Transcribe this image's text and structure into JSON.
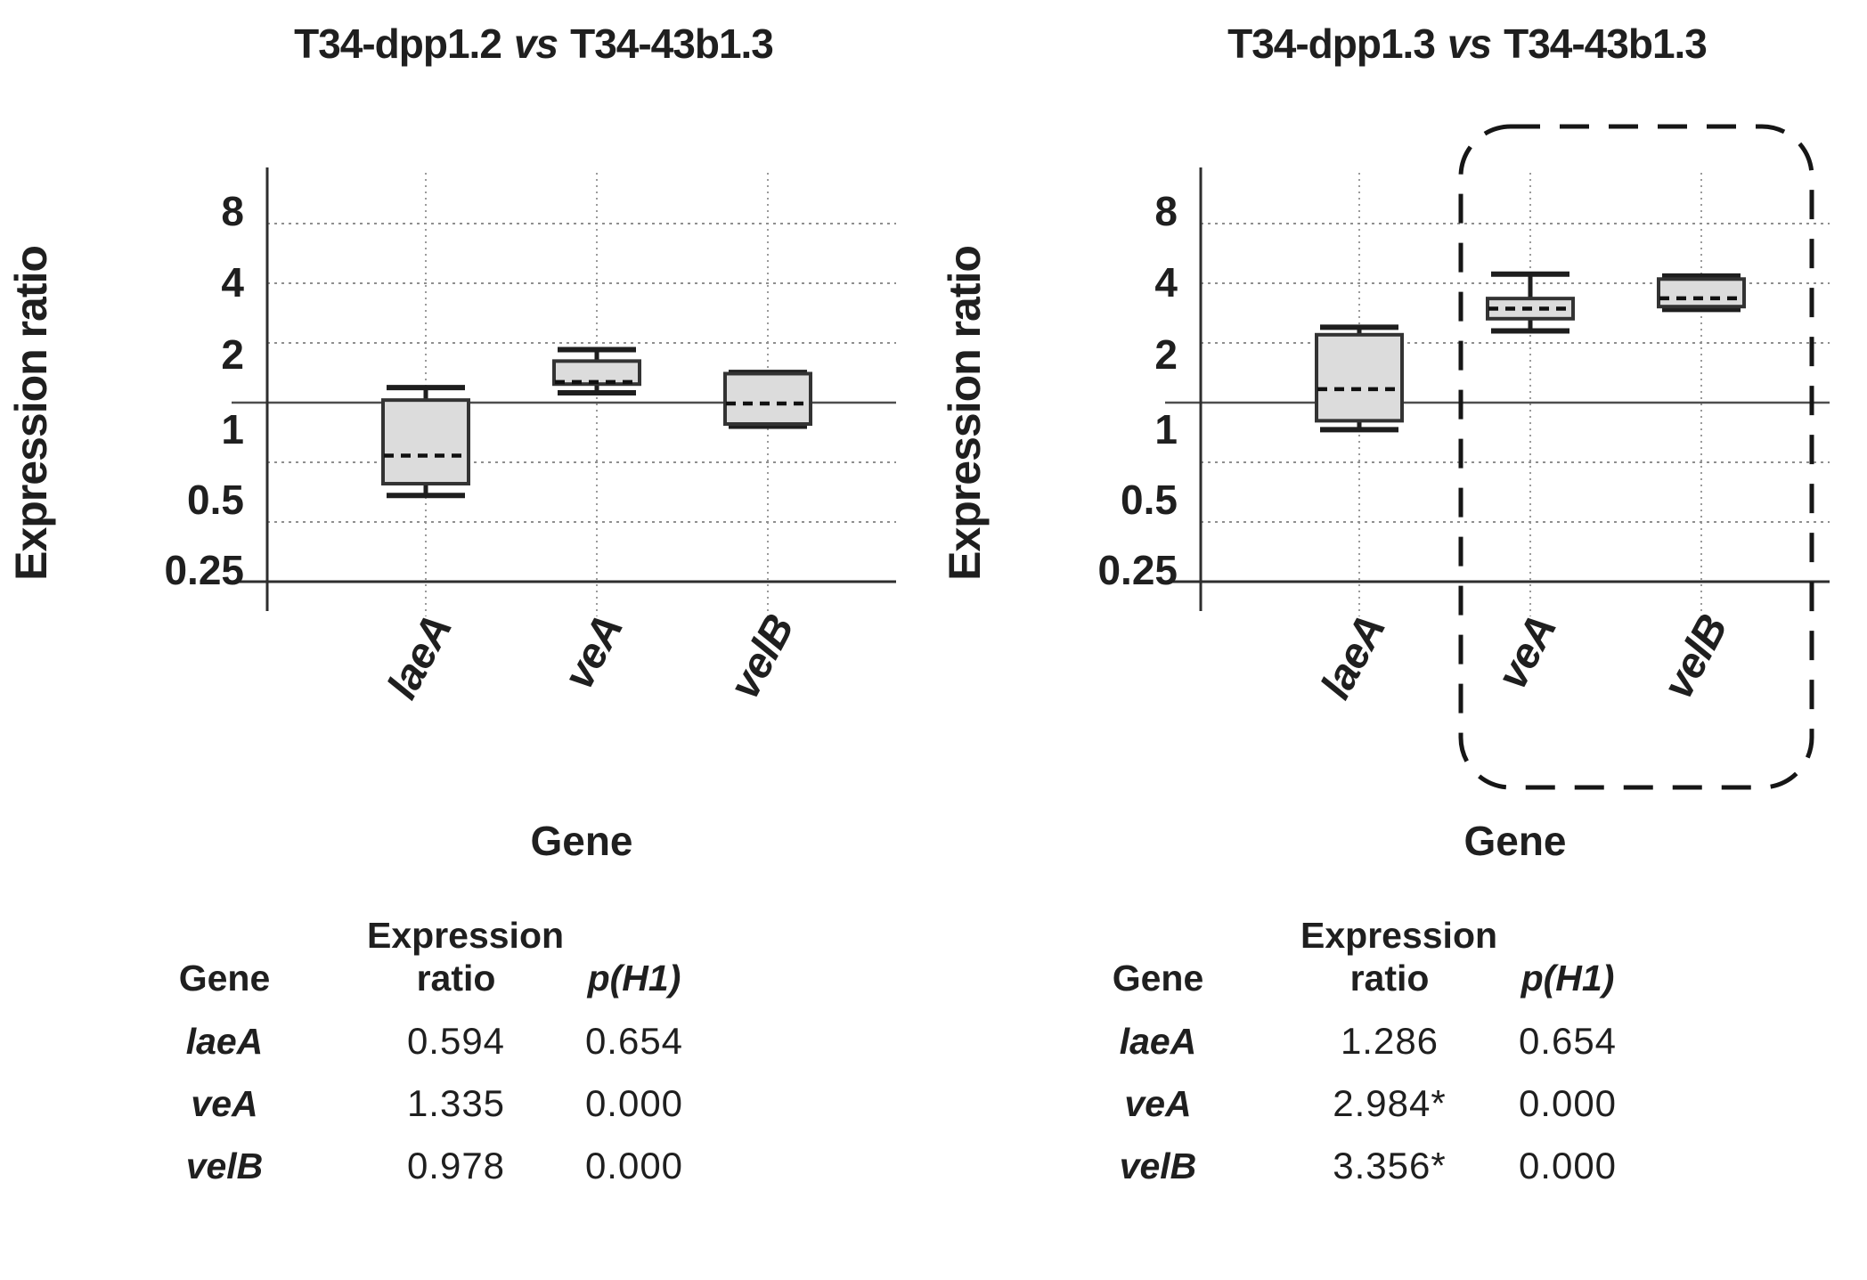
{
  "figure": {
    "background": "#ffffff",
    "text_color": "#1f1f1f",
    "box_fill": "#dcdcdc",
    "box_stroke": "#333333"
  },
  "panels": [
    {
      "title": {
        "pre": "T34-dpp1.2",
        "vs": "vs",
        "post": "T34-43b1.3"
      },
      "y_axis_label": "Expression ratio",
      "x_axis_label": "Gene",
      "table": {
        "headers": {
          "gene": "Gene",
          "ratio_line1": "Expression",
          "ratio_line2": "ratio",
          "p": "p(H1)"
        },
        "rows": [
          [
            "laeA",
            "0.594",
            "0.654"
          ],
          [
            "veA",
            "1.335",
            "0.000"
          ],
          [
            "velB",
            "0.978",
            "0.000"
          ]
        ]
      }
    },
    {
      "title": {
        "pre": "T34-dpp1.3",
        "vs": "vs",
        "post": "T34-43b1.3"
      },
      "y_axis_label": "Expression ratio",
      "x_axis_label": "Gene",
      "table": {
        "headers": {
          "gene": "Gene",
          "ratio_line1": "Expression",
          "ratio_line2": "ratio",
          "p": "p(H1)"
        },
        "rows": [
          [
            "laeA",
            "1.286",
            "0.654"
          ],
          [
            "veA",
            "2.984*",
            "0.000"
          ],
          [
            "velB",
            "3.356*",
            "0.000"
          ]
        ]
      }
    }
  ],
  "chart_data": [
    {
      "type": "boxplot",
      "title": "T34-dpp1.2 vs T34-43b1.3",
      "xlabel": "Gene",
      "ylabel": "Expression ratio",
      "y_scale": "log2",
      "y_ticks": [
        8,
        4,
        2,
        1,
        0.5,
        0.25
      ],
      "ylim": [
        0.125,
        12
      ],
      "reference_line": 1,
      "grid": true,
      "categories": [
        "laeA",
        "veA",
        "velB"
      ],
      "boxes": [
        {
          "gene": "laeA",
          "whisker_low": 0.34,
          "q1": 0.39,
          "median": 0.54,
          "q3": 1.03,
          "whisker_high": 1.19
        },
        {
          "gene": "veA",
          "whisker_low": 1.12,
          "q1": 1.24,
          "median": 1.27,
          "q3": 1.62,
          "whisker_high": 1.85
        },
        {
          "gene": "velB",
          "whisker_low": 0.76,
          "q1": 0.78,
          "median": 0.99,
          "q3": 1.4,
          "whisker_high": 1.42
        }
      ],
      "summary": {
        "expression_ratio": [
          "0.594",
          "1.335",
          "0.978"
        ],
        "p_H1": [
          "0.654",
          "0.000",
          "0.000"
        ]
      },
      "highlight_region": null
    },
    {
      "type": "boxplot",
      "title": "T34-dpp1.3 vs T34-43b1.3",
      "xlabel": "Gene",
      "ylabel": "Expression ratio",
      "y_scale": "log2",
      "y_ticks": [
        8,
        4,
        2,
        1,
        0.5,
        0.25
      ],
      "ylim": [
        0.125,
        12
      ],
      "reference_line": 1,
      "grid": true,
      "categories": [
        "laeA",
        "veA",
        "velB"
      ],
      "boxes": [
        {
          "gene": "laeA",
          "whisker_low": 0.73,
          "q1": 0.81,
          "median": 1.17,
          "q3": 2.2,
          "whisker_high": 2.4
        },
        {
          "gene": "veA",
          "whisker_low": 2.3,
          "q1": 2.65,
          "median": 2.98,
          "q3": 3.35,
          "whisker_high": 4.45
        },
        {
          "gene": "velB",
          "whisker_low": 2.95,
          "q1": 3.05,
          "median": 3.36,
          "q3": 4.2,
          "whisker_high": 4.35
        }
      ],
      "summary": {
        "expression_ratio": [
          "1.286",
          "2.984*",
          "3.356*"
        ],
        "p_H1": [
          "0.654",
          "0.000",
          "0.000"
        ]
      },
      "highlight_region": {
        "categories": [
          "veA",
          "velB"
        ],
        "style": "dashed-rounded-rect"
      }
    }
  ]
}
